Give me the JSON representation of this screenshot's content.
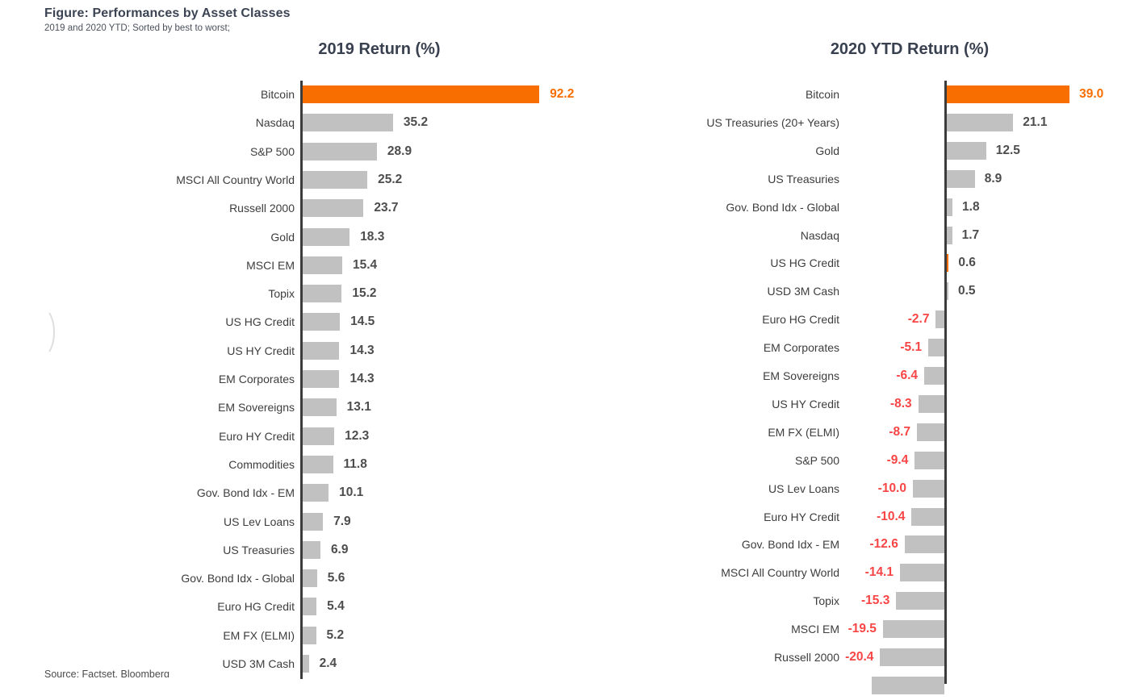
{
  "header": {
    "title": "Figure: Performances by Asset Classes",
    "subtitle": "2019 and 2020 YTD; Sorted by best to worst;"
  },
  "source_line": "Source: Factset, Bloomberg",
  "colors": {
    "highlight_orange": "#F86E00",
    "bar_gray": "#C1C1C1",
    "negative_red": "#F84545",
    "value_gray": "#4D4D4D",
    "label_dark": "#3D3D3D",
    "title_navy": "#3A4250"
  },
  "chart_data": [
    {
      "type": "bar",
      "orientation": "horizontal",
      "title": "2019 Return (%)",
      "unit": "%",
      "sorted": "best to worst",
      "legend": "none",
      "grid": false,
      "xlim": [
        0,
        100
      ],
      "categories": [
        "Bitcoin",
        "Nasdaq",
        "S&P 500",
        "MSCI All Country World",
        "Russell 2000",
        "Gold",
        "MSCI EM",
        "Topix",
        "US HG Credit",
        "US HY Credit",
        "EM Corporates",
        "EM Sovereigns",
        "Euro HY Credit",
        "Commodities",
        "Gov. Bond Idx - EM",
        "US Lev Loans",
        "US Treasuries",
        "Gov. Bond Idx - Global",
        "Euro HG Credit",
        "EM FX (ELMI)",
        "USD 3M Cash"
      ],
      "values": [
        92.2,
        35.2,
        28.9,
        25.2,
        23.7,
        18.3,
        15.4,
        15.2,
        14.5,
        14.3,
        14.3,
        13.1,
        12.3,
        11.8,
        10.1,
        7.9,
        6.9,
        5.6,
        5.4,
        5.2,
        2.4
      ],
      "highlighted": [
        "Bitcoin"
      ],
      "clipped_partial_bar_below": false
    },
    {
      "type": "bar",
      "orientation": "horizontal",
      "title": "2020 YTD Return (%)",
      "unit": "%",
      "sorted": "best to worst",
      "legend": "none",
      "grid": false,
      "xlim": [
        -25,
        45
      ],
      "categories": [
        "Bitcoin",
        "US Treasuries (20+ Years)",
        "Gold",
        "US Treasuries",
        "Gov. Bond Idx - Global",
        "Nasdaq",
        "US HG Credit",
        "USD 3M Cash",
        "Euro HG Credit",
        "EM Corporates",
        "EM Sovereigns",
        "US HY Credit",
        "EM FX (ELMI)",
        "S&P 500",
        "US Lev Loans",
        "Euro HY Credit",
        "Gov. Bond Idx - EM",
        "MSCI All Country World",
        "Topix",
        "MSCI EM",
        "Russell 2000"
      ],
      "values": [
        39.0,
        21.1,
        12.5,
        8.9,
        1.8,
        1.7,
        0.6,
        0.5,
        -2.7,
        -5.1,
        -6.4,
        -8.3,
        -8.7,
        -9.4,
        -10.0,
        -10.4,
        -12.6,
        -14.1,
        -15.3,
        -19.5,
        -20.4
      ],
      "highlighted": [
        "Bitcoin",
        "US HG Credit"
      ],
      "clipped_partial_bar_below": true
    }
  ]
}
